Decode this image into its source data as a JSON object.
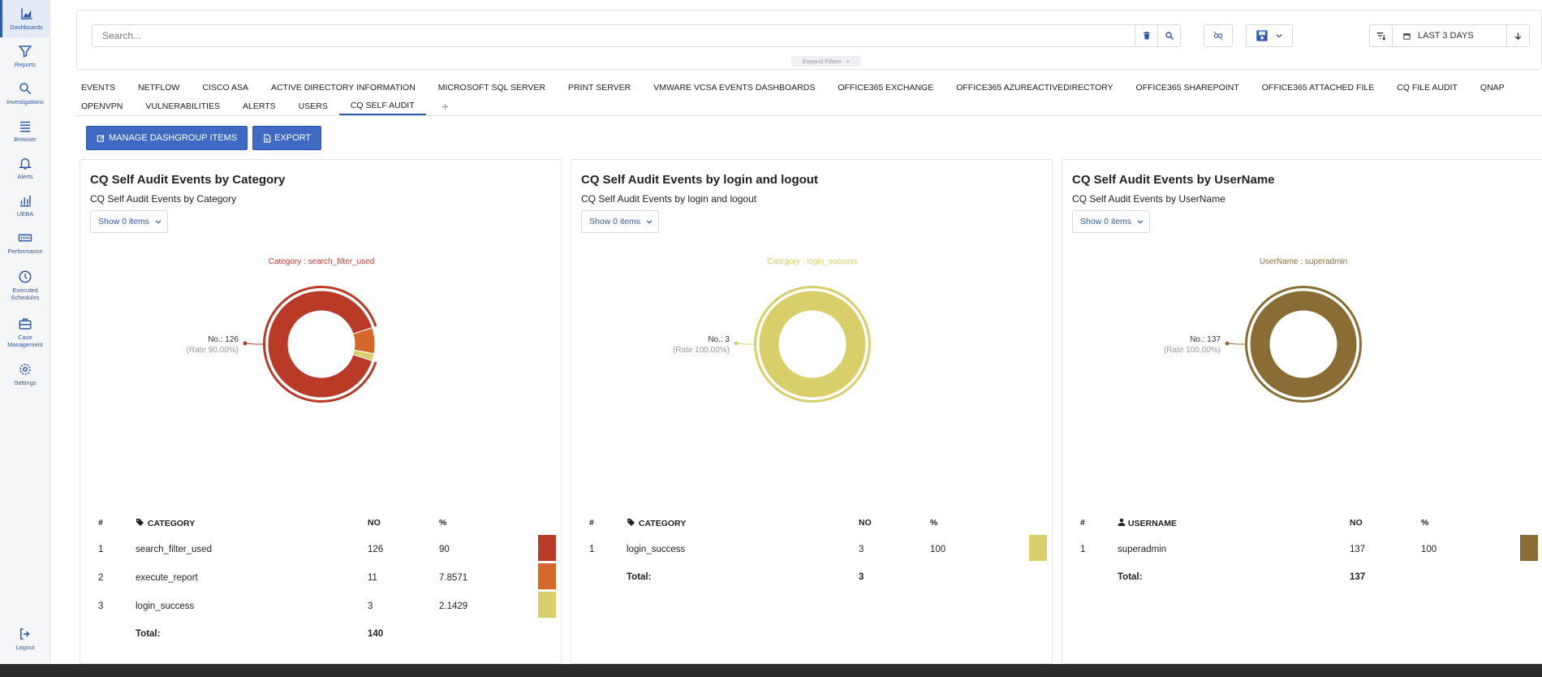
{
  "sidebar": {
    "items": [
      {
        "label": "Dashboards",
        "icon": "chart-area-icon"
      },
      {
        "label": "Reports",
        "icon": "filter-icon"
      },
      {
        "label": "Investigations",
        "icon": "search-icon"
      },
      {
        "label": "Browser",
        "icon": "list-icon"
      },
      {
        "label": "Alerts",
        "icon": "bell-icon"
      },
      {
        "label": "UEBA",
        "icon": "bar-chart-icon"
      },
      {
        "label": "Performance",
        "icon": "gauge-icon"
      },
      {
        "label": "Executed Schedules",
        "icon": "clock-icon"
      },
      {
        "label": "Case Management",
        "icon": "briefcase-icon"
      },
      {
        "label": "Settings",
        "icon": "gear-icon"
      }
    ],
    "logout": "Logout"
  },
  "search": {
    "placeholder": "Search...",
    "expand_filters": "Expand Filters",
    "expand_plus": "+",
    "date_range": "LAST 3 DAYS"
  },
  "tabs": {
    "row1": [
      "EVENTS",
      "NETFLOW",
      "CISCO ASA",
      "ACTIVE DIRECTORY INFORMATION",
      "MICROSOFT SQL SERVER",
      "PRINT SERVER",
      "VMWARE VCSA EVENTS DASHBOARDS",
      "OFFICE365 EXCHANGE",
      "OFFICE365 AZUREACTIVEDIRECTORY",
      "OFFICE365 SHAREPOINT",
      "OFFICE365 ATTACHED FILE",
      "CQ FILE AUDIT",
      "QNAP"
    ],
    "row2": [
      "OPENVPN",
      "VULNERABILITIES",
      "ALERTS",
      "USERS",
      "CQ SELF AUDIT"
    ],
    "active": "CQ SELF AUDIT",
    "add": "+"
  },
  "actions": {
    "manage": "MANAGE DASHGROUP ITEMS",
    "export": "EXPORT"
  },
  "panels": [
    {
      "title": "CQ Self Audit Events by Category",
      "subtitle": "CQ Self Audit Events by Category",
      "show": "Show 0 items",
      "chart_label": "Category : search_filter_used",
      "chart_label_color": "#c0392b",
      "callout_no": "No.: 126",
      "callout_rate": "(Rate 90.00%)",
      "col_key": "CATEGORY",
      "col_no": "NO",
      "col_pct": "%",
      "col_num": "#",
      "key_icon": "tags-icon",
      "rows": [
        {
          "n": "1",
          "name": "search_filter_used",
          "no": "126",
          "pct": "90",
          "color": "#b93a26"
        },
        {
          "n": "2",
          "name": "execute_report",
          "no": "11",
          "pct": "7.8571",
          "color": "#d4682a"
        },
        {
          "n": "3",
          "name": "login_success",
          "no": "3",
          "pct": "2.1429",
          "color": "#d8ce6a"
        }
      ],
      "total_label": "Total:",
      "total": "140"
    },
    {
      "title": "CQ Self Audit Events by login and logout",
      "subtitle": "CQ Self Audit Events by login and logout",
      "show": "Show 0 items",
      "chart_label": "Category : login_success",
      "chart_label_color": "#d8ce6a",
      "callout_no": "No.: 3",
      "callout_rate": "(Rate 100.00%)",
      "col_key": "CATEGORY",
      "col_no": "NO",
      "col_pct": "%",
      "col_num": "#",
      "key_icon": "tags-icon",
      "rows": [
        {
          "n": "1",
          "name": "login_success",
          "no": "3",
          "pct": "100",
          "color": "#d8ce6a"
        }
      ],
      "total_label": "Total:",
      "total": "3"
    },
    {
      "title": "CQ Self Audit Events by UserName",
      "subtitle": "CQ Self Audit Events by UserName",
      "show": "Show 0 items",
      "chart_label": "UserName : superadmin",
      "chart_label_color": "#8a6d35",
      "callout_no": "No.: 137",
      "callout_rate": "(Rate 100.00%)",
      "col_key": "USERNAME",
      "col_no": "NO",
      "col_pct": "%",
      "col_num": "#",
      "key_icon": "user-icon",
      "rows": [
        {
          "n": "1",
          "name": "superadmin",
          "no": "137",
          "pct": "100",
          "color": "#8a6d35"
        }
      ],
      "total_label": "Total:",
      "total": "137"
    }
  ],
  "chart_data": [
    {
      "type": "pie",
      "categories": [
        "search_filter_used",
        "execute_report",
        "login_success"
      ],
      "values": [
        126,
        11,
        3
      ],
      "colors": [
        "#b93a26",
        "#d4682a",
        "#d8ce6a"
      ],
      "highlighted": "search_filter_used"
    },
    {
      "type": "pie",
      "categories": [
        "login_success"
      ],
      "values": [
        3
      ],
      "colors": [
        "#d8ce6a"
      ],
      "highlighted": "login_success"
    },
    {
      "type": "pie",
      "categories": [
        "superadmin"
      ],
      "values": [
        137
      ],
      "colors": [
        "#8a6d35"
      ],
      "highlighted": "superadmin"
    }
  ]
}
